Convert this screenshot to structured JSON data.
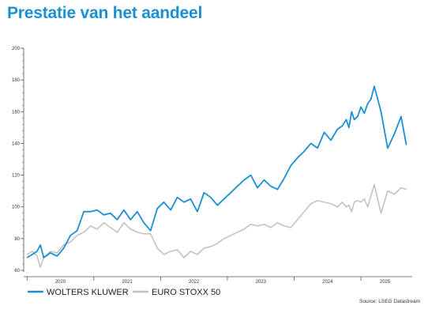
{
  "title": "Prestatie van het aandeel",
  "source": "Source: LSEG Datastream",
  "chart_data": {
    "type": "line",
    "title": "Prestatie van het aandeel",
    "xlabel": "",
    "ylabel": "",
    "ylim": [
      60,
      200
    ],
    "yticks": [
      60,
      80,
      100,
      120,
      140,
      160,
      180,
      200
    ],
    "xlim": [
      2019.95,
      2025.72
    ],
    "xticks": [
      "2020",
      "2021",
      "2022",
      "2023",
      "2024",
      "2025"
    ],
    "grid": false,
    "legend": "bottom-left",
    "series": [
      {
        "name": "WOLTERS KLUWER",
        "color": "#1c8fd2",
        "x": [
          2020.0,
          2020.08,
          2020.15,
          2020.2,
          2020.25,
          2020.35,
          2020.45,
          2020.55,
          2020.65,
          2020.75,
          2020.85,
          2020.95,
          2021.05,
          2021.15,
          2021.25,
          2021.35,
          2021.45,
          2021.55,
          2021.65,
          2021.75,
          2021.85,
          2021.95,
          2022.05,
          2022.15,
          2022.25,
          2022.35,
          2022.45,
          2022.55,
          2022.65,
          2022.75,
          2022.85,
          2022.95,
          2023.05,
          2023.15,
          2023.25,
          2023.35,
          2023.45,
          2023.55,
          2023.65,
          2023.75,
          2023.85,
          2023.95,
          2024.05,
          2024.15,
          2024.25,
          2024.35,
          2024.45,
          2024.55,
          2024.65,
          2024.72,
          2024.78,
          2024.82,
          2024.86,
          2024.9,
          2024.95,
          2025.0,
          2025.05,
          2025.1,
          2025.15,
          2025.2,
          2025.3,
          2025.4,
          2025.5,
          2025.6,
          2025.68
        ],
        "values": [
          68,
          70,
          72,
          76,
          68,
          71,
          69,
          74,
          82,
          85,
          97,
          97,
          98,
          95,
          96,
          92,
          98,
          92,
          97,
          90,
          85,
          99,
          103,
          98,
          106,
          103,
          105,
          97,
          109,
          106,
          101,
          105,
          109,
          113,
          117,
          120,
          112,
          117,
          113,
          111,
          118,
          126,
          131,
          135,
          140,
          137,
          147,
          142,
          149,
          151,
          155,
          150,
          160,
          155,
          157,
          163,
          159,
          165,
          168,
          176,
          160,
          137,
          146,
          157,
          139
        ]
      },
      {
        "name": "EURO STOXX 50",
        "color": "#bfbfbf",
        "x": [
          2020.0,
          2020.08,
          2020.15,
          2020.2,
          2020.25,
          2020.35,
          2020.45,
          2020.55,
          2020.65,
          2020.75,
          2020.85,
          2020.95,
          2021.05,
          2021.15,
          2021.25,
          2021.35,
          2021.45,
          2021.55,
          2021.65,
          2021.75,
          2021.85,
          2021.95,
          2022.05,
          2022.15,
          2022.25,
          2022.35,
          2022.45,
          2022.55,
          2022.65,
          2022.75,
          2022.85,
          2022.95,
          2023.05,
          2023.15,
          2023.25,
          2023.35,
          2023.45,
          2023.55,
          2023.65,
          2023.75,
          2023.85,
          2023.95,
          2024.05,
          2024.15,
          2024.25,
          2024.35,
          2024.45,
          2024.55,
          2024.65,
          2024.72,
          2024.78,
          2024.82,
          2024.86,
          2024.9,
          2024.95,
          2025.0,
          2025.05,
          2025.1,
          2025.15,
          2025.2,
          2025.3,
          2025.4,
          2025.5,
          2025.6,
          2025.68
        ],
        "values": [
          70,
          72,
          69,
          62,
          68,
          72,
          71,
          76,
          78,
          82,
          84,
          88,
          86,
          90,
          87,
          84,
          90,
          86,
          84,
          83,
          83,
          74,
          70,
          72,
          73,
          68,
          72,
          70,
          74,
          75,
          77,
          80,
          82,
          84,
          86,
          89,
          88,
          89,
          87,
          90,
          88,
          87,
          92,
          97,
          102,
          104,
          103,
          102,
          100,
          103,
          100,
          101,
          97,
          103,
          104,
          103,
          105,
          100,
          107,
          114,
          96,
          110,
          108,
          112,
          111
        ]
      }
    ]
  }
}
